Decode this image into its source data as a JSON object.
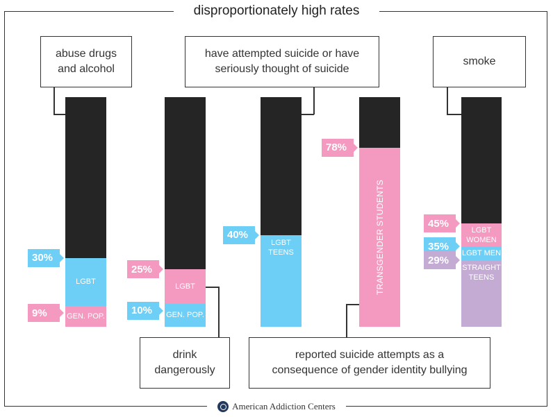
{
  "title": "disproportionately high rates",
  "footer": {
    "brand": "American Addiction Centers"
  },
  "colors": {
    "bar": "#252525",
    "blue": "#6dcff6",
    "pink": "#f49ac1",
    "purple": "#c3abd4"
  },
  "chart_data": {
    "type": "bar",
    "title": "disproportionately high rates",
    "ylim": [
      0,
      100
    ],
    "annotations": {
      "drugs": "abuse drugs\nand alcohol",
      "suicide": "have attempted suicide or have\nseriously thought of suicide",
      "smoke": "smoke",
      "drink": "drink\ndangerously",
      "bullying": "reported suicide attempts as a\nconsequence of gender identity bullying"
    },
    "bars": [
      {
        "group": "abuse drugs and alcohol",
        "segments": [
          {
            "label": "LGBT",
            "value": 30,
            "value_label": "30%",
            "color": "blue"
          },
          {
            "label": "GEN. POP.",
            "value": 9,
            "value_label": "9%",
            "color": "pink"
          }
        ]
      },
      {
        "group": "drink dangerously",
        "segments": [
          {
            "label": "LGBT",
            "value": 25,
            "value_label": "25%",
            "color": "pink"
          },
          {
            "label": "GEN. POP.",
            "value": 10,
            "value_label": "10%",
            "color": "blue"
          }
        ]
      },
      {
        "group": "have attempted suicide or have seriously thought of suicide",
        "segments": [
          {
            "label": "LGBT\nTEENS",
            "value": 40,
            "value_label": "40%",
            "color": "blue"
          }
        ]
      },
      {
        "group": "reported suicide attempts as a consequence of gender identity bullying",
        "segments": [
          {
            "label": "TRANSGENDER STUDENTS",
            "value": 78,
            "value_label": "78%",
            "color": "pink"
          }
        ]
      },
      {
        "group": "smoke",
        "segments": [
          {
            "label": "LGBT\nWOMEN",
            "value": 45,
            "value_label": "45%",
            "color": "pink"
          },
          {
            "label": "LGBT MEN",
            "value": 35,
            "value_label": "35%",
            "color": "blue"
          },
          {
            "label": "STRAIGHT\nTEENS",
            "value": 29,
            "value_label": "29%",
            "color": "purple"
          }
        ]
      }
    ]
  }
}
